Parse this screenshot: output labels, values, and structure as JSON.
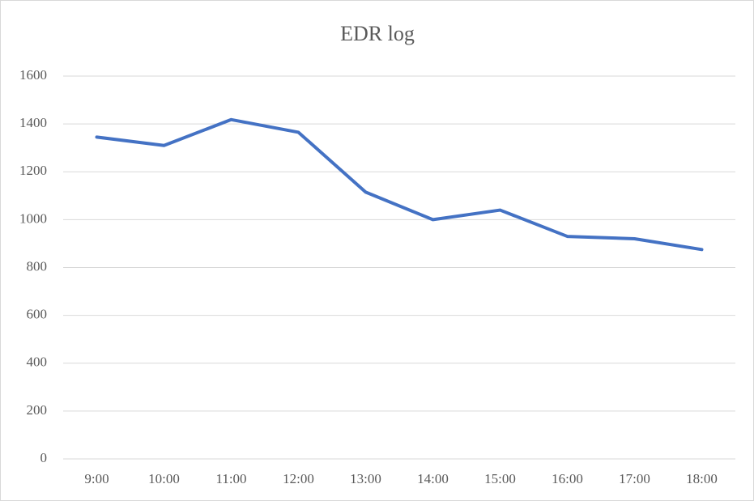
{
  "chart_data": {
    "type": "line",
    "title": "EDR log",
    "categories": [
      "9:00",
      "10:00",
      "11:00",
      "12:00",
      "13:00",
      "14:00",
      "15:00",
      "16:00",
      "17:00",
      "18:00"
    ],
    "series": [
      {
        "color": "#4472c4",
        "values": [
          1345,
          1310,
          1418,
          1365,
          1115,
          1000,
          1040,
          930,
          920,
          875
        ]
      }
    ],
    "ylim": [
      0,
      1600
    ],
    "yticks": [
      0,
      200,
      400,
      600,
      800,
      1000,
      1200,
      1400,
      1600
    ],
    "grid": true
  }
}
